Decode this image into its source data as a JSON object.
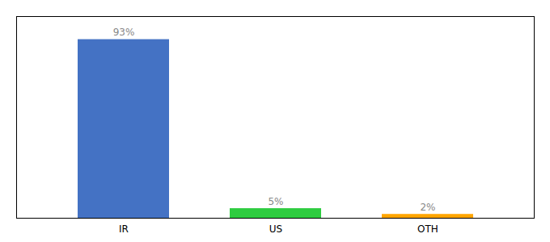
{
  "chart_data": {
    "type": "bar",
    "categories": [
      "IR",
      "US",
      "OTH"
    ],
    "values": [
      93,
      5,
      2
    ],
    "value_labels": [
      "93%",
      "5%",
      "2%"
    ],
    "data_labels": true,
    "colors": [
      "#4472C4",
      "#2ECC40",
      "#FFA500"
    ],
    "ylim": [
      0,
      105
    ],
    "grid": false,
    "tick_labels": "x"
  }
}
